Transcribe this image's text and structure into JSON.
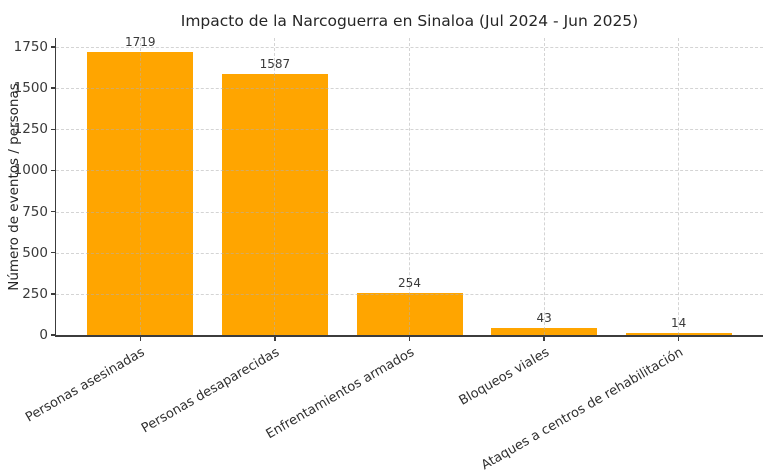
{
  "chart_data": {
    "type": "bar",
    "title": "Impacto de la Narcoguerra en Sinaloa (Jul 2024 - Jun 2025)",
    "xlabel": "",
    "ylabel": "Número de eventos / personas",
    "categories": [
      "Personas asesinadas",
      "Personas desaparecidas",
      "Enfrentamientos armados",
      "Bloqueos viales",
      "Ataques a centros de rehabilitación"
    ],
    "values": [
      1719,
      1587,
      254,
      43,
      14
    ],
    "yticks": [
      0,
      250,
      500,
      750,
      1000,
      1250,
      1500,
      1750
    ],
    "ylim": [
      0,
      1805
    ],
    "bar_color": "#FFA500",
    "axis_color": "#3c3c3c",
    "grid": true,
    "grid_style": "dashed",
    "legend": "none",
    "x_tick_rotation": 30
  }
}
